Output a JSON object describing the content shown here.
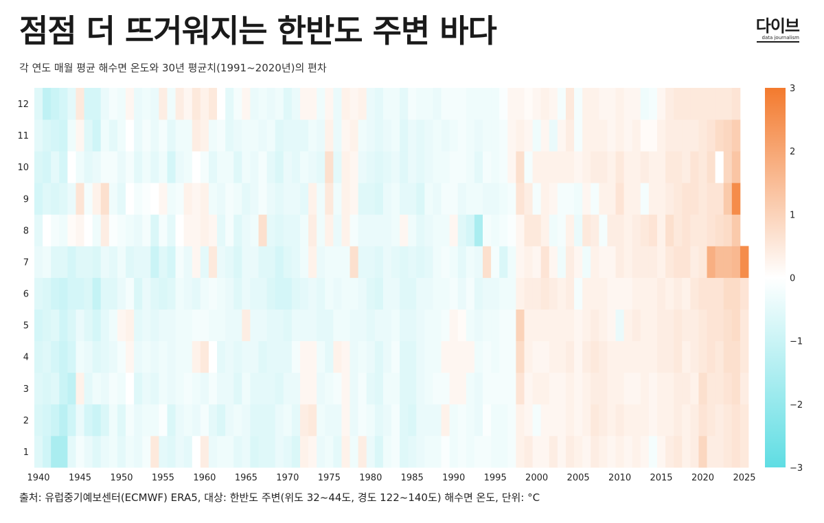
{
  "header": {
    "title": "점점 더 뜨거워지는 한반도 주변 바다",
    "subtitle": "각 연도 매월 평균 해수면 온도와 30년 평균치(1991~2020년)의 편차"
  },
  "logo": {
    "main": "다이브",
    "sub": "data journalism"
  },
  "footer": {
    "source": "출처: 유럽중기예보센터(ECMWF) ERA5, 대상: 한반도 주변(위도 32~44도, 경도 122~140도) 해수면 온도, 단위: °C"
  },
  "colors": {
    "cold": "#5fdde3",
    "neutral": "#ffffff",
    "warm": "#f37a2e"
  },
  "chart_data": {
    "type": "heatmap",
    "x_start": 1940,
    "x_end": 2025,
    "y_values": [
      1,
      2,
      3,
      4,
      5,
      6,
      7,
      8,
      9,
      10,
      11,
      12
    ],
    "x_ticks": [
      "1940",
      "1945",
      "1950",
      "1955",
      "1960",
      "1965",
      "1970",
      "1975",
      "1980",
      "1985",
      "1990",
      "1995",
      "2000",
      "2005",
      "2010",
      "2015",
      "2020",
      "2025"
    ],
    "y_ticks": [
      "1",
      "2",
      "3",
      "4",
      "5",
      "6",
      "7",
      "8",
      "9",
      "10",
      "11",
      "12"
    ],
    "colorbar": {
      "min": -3,
      "max": 3,
      "ticks": [
        "3",
        "2",
        "1",
        "0",
        "−1",
        "−2",
        "−3"
      ]
    },
    "unit": "°C",
    "values": {
      "1940": [
        -0.6,
        -0.7,
        -0.6,
        -0.7,
        -0.8,
        -0.6,
        -0.4,
        -0.5,
        -0.8,
        -0.7,
        -0.5,
        -0.6
      ],
      "1941": [
        -0.9,
        -0.8,
        -0.7,
        -0.6,
        -0.7,
        -0.7,
        -0.3,
        0.0,
        -0.6,
        -0.8,
        -0.7,
        -1.2
      ],
      "1942": [
        -1.6,
        -1.0,
        -0.6,
        -0.8,
        -0.6,
        -0.9,
        -0.6,
        -0.2,
        -0.7,
        -0.5,
        -0.8,
        -1.0
      ],
      "1943": [
        -1.6,
        -1.3,
        -1.0,
        -1.0,
        -0.9,
        -1.0,
        -0.6,
        -0.3,
        -0.6,
        -0.8,
        -0.9,
        -0.8
      ],
      "1944": [
        -0.5,
        -0.9,
        -1.2,
        -0.8,
        -0.7,
        -0.8,
        -0.8,
        0.1,
        -0.4,
        0.0,
        -0.3,
        -0.5
      ],
      "1945": [
        -0.2,
        -0.4,
        0.3,
        -0.3,
        -0.4,
        -0.8,
        -0.6,
        0.2,
        0.6,
        -0.3,
        0.2,
        0.5
      ],
      "1946": [
        -0.4,
        -0.8,
        -0.5,
        -0.4,
        -0.6,
        -0.7,
        -0.6,
        0.0,
        -0.2,
        -0.5,
        -0.6,
        -0.8
      ],
      "1947": [
        -0.6,
        -1.0,
        -0.3,
        -0.6,
        -0.8,
        -1.1,
        -0.7,
        -0.3,
        0.3,
        -0.4,
        -0.9,
        -0.8
      ],
      "1948": [
        -0.4,
        -0.7,
        -0.4,
        -0.5,
        -0.5,
        -0.6,
        -0.4,
        0.4,
        0.7,
        -0.2,
        -0.3,
        -0.4
      ],
      "1949": [
        -0.3,
        -0.3,
        -0.2,
        -0.4,
        -0.3,
        -0.6,
        -0.5,
        -0.1,
        -0.3,
        -0.2,
        -0.5,
        -0.2
      ],
      "1950": [
        -0.5,
        -0.6,
        -0.3,
        -0.2,
        0.2,
        -0.4,
        -0.3,
        -0.2,
        -0.5,
        -0.4,
        -0.3,
        -0.3
      ],
      "1951": [
        -0.3,
        -0.2,
        0.0,
        0.2,
        0.3,
        -0.2,
        -0.6,
        -0.3,
        0.0,
        -0.2,
        0.0,
        0.2
      ],
      "1952": [
        -0.4,
        -0.4,
        -0.6,
        -0.4,
        -0.5,
        -0.7,
        -0.5,
        -0.4,
        -0.2,
        -0.5,
        -0.4,
        -0.4
      ],
      "1953": [
        -0.2,
        -0.3,
        -0.4,
        -0.3,
        -0.4,
        -0.4,
        -0.5,
        -0.2,
        -0.1,
        -0.3,
        -0.2,
        -0.3
      ],
      "1954": [
        0.5,
        -0.3,
        -0.5,
        -0.4,
        -0.5,
        -0.6,
        -1.0,
        -0.7,
        0.0,
        -0.5,
        -0.4,
        -0.4
      ],
      "1955": [
        -0.5,
        -0.1,
        -0.3,
        -0.3,
        -0.4,
        -0.7,
        -0.6,
        -0.2,
        0.2,
        -0.3,
        -0.2,
        0.4
      ],
      "1956": [
        -0.6,
        -0.7,
        -0.4,
        -0.4,
        -0.4,
        -0.6,
        -0.8,
        -0.5,
        -0.3,
        -0.8,
        -0.5,
        -0.3
      ],
      "1957": [
        -0.4,
        -0.4,
        -0.3,
        -0.3,
        -0.3,
        -0.3,
        -0.2,
        0.0,
        -0.2,
        -0.4,
        -0.3,
        0.4
      ],
      "1958": [
        -0.5,
        -0.3,
        -0.2,
        -0.3,
        -0.3,
        -0.4,
        -0.4,
        0.2,
        0.3,
        -0.3,
        -0.3,
        0.2
      ],
      "1959": [
        0.0,
        -0.4,
        -0.3,
        0.3,
        -0.2,
        -0.5,
        0.2,
        0.2,
        0.2,
        0.0,
        0.4,
        0.5
      ],
      "1960": [
        0.4,
        -0.2,
        -0.4,
        0.5,
        -0.2,
        -0.3,
        -0.5,
        0.3,
        0.3,
        -0.2,
        0.3,
        0.3
      ],
      "1961": [
        -0.4,
        -0.5,
        -0.2,
        0.0,
        -0.3,
        -0.2,
        0.5,
        0.2,
        -0.3,
        -0.5,
        -0.3,
        0.5
      ],
      "1962": [
        -0.3,
        -0.7,
        -0.4,
        -0.5,
        -0.3,
        -0.3,
        -0.4,
        -0.5,
        -0.4,
        -0.3,
        -0.2,
        0.0
      ],
      "1963": [
        -0.3,
        -0.4,
        -0.4,
        -0.4,
        -0.4,
        -0.4,
        -0.5,
        -0.2,
        -0.2,
        -0.3,
        -0.5,
        -0.5
      ],
      "1964": [
        -0.5,
        -0.3,
        -0.6,
        -0.5,
        -0.4,
        -0.6,
        -0.7,
        -0.6,
        -0.3,
        -0.6,
        -0.4,
        -0.2
      ],
      "1965": [
        -0.4,
        -0.4,
        -0.3,
        -0.4,
        0.4,
        -0.4,
        -0.4,
        -0.4,
        -0.5,
        -0.3,
        -0.3,
        0.2
      ],
      "1966": [
        -0.7,
        -0.6,
        -0.5,
        -0.4,
        -0.4,
        -0.5,
        -0.4,
        -0.3,
        -0.4,
        -0.4,
        -0.3,
        -0.4
      ],
      "1967": [
        -0.6,
        -0.6,
        -0.5,
        -0.6,
        -0.4,
        -0.5,
        -0.6,
        0.7,
        -0.2,
        -0.2,
        -0.4,
        -0.3
      ],
      "1968": [
        -0.6,
        -0.6,
        -0.5,
        -0.5,
        -0.5,
        -0.7,
        -0.6,
        -0.5,
        -0.4,
        -0.5,
        -0.3,
        -0.4
      ],
      "1969": [
        -0.4,
        -0.4,
        -0.6,
        -0.5,
        -0.5,
        -0.8,
        -0.8,
        -0.6,
        -0.5,
        -0.7,
        -0.6,
        -0.3
      ],
      "1970": [
        -0.5,
        -0.3,
        -0.4,
        -0.5,
        -0.6,
        -0.8,
        -0.6,
        -0.5,
        -0.4,
        -0.4,
        -0.5,
        -0.6
      ],
      "1971": [
        -0.7,
        -0.5,
        -0.4,
        -0.2,
        -0.4,
        -0.6,
        -0.5,
        -0.5,
        -0.4,
        -0.5,
        -0.5,
        -0.4
      ],
      "1972": [
        0.3,
        0.4,
        0.2,
        0.2,
        -0.4,
        -0.5,
        -0.3,
        -0.3,
        -0.5,
        -0.3,
        -0.5,
        0.2
      ],
      "1973": [
        0.2,
        0.5,
        0.2,
        0.2,
        -0.4,
        -0.4,
        0.3,
        0.4,
        0.3,
        -0.4,
        -0.3,
        0.2
      ],
      "1974": [
        -0.4,
        -0.3,
        -0.4,
        -0.3,
        -0.5,
        -0.5,
        -0.4,
        -0.3,
        -0.3,
        -0.5,
        -0.4,
        -0.3
      ],
      "1975": [
        -0.3,
        -0.4,
        -0.3,
        -0.5,
        -0.5,
        -0.3,
        -0.3,
        0.3,
        0.5,
        0.7,
        0.3,
        0.2
      ],
      "1976": [
        -0.5,
        -0.4,
        -0.2,
        0.3,
        -0.3,
        -0.4,
        -0.3,
        -0.4,
        -0.3,
        -0.5,
        -0.4,
        -0.4
      ],
      "1977": [
        0.3,
        0.2,
        0.2,
        0.2,
        -0.3,
        -0.3,
        -0.3,
        0.3,
        0.3,
        0.3,
        0.2,
        0.3
      ],
      "1978": [
        -0.3,
        -0.4,
        -0.4,
        -0.4,
        -0.4,
        -0.3,
        0.7,
        -0.2,
        0.2,
        0.2,
        0.3,
        0.2
      ],
      "1979": [
        0.4,
        -0.2,
        -0.2,
        -0.3,
        -0.4,
        -0.4,
        -0.5,
        -0.4,
        -0.6,
        -0.4,
        -0.3,
        0.3
      ],
      "1980": [
        -0.4,
        -0.3,
        -0.5,
        -0.4,
        -0.5,
        -0.6,
        -0.5,
        -0.4,
        -0.6,
        -0.5,
        -0.4,
        -0.4
      ],
      "1981": [
        -0.7,
        -0.5,
        -0.6,
        -0.6,
        -0.4,
        -0.7,
        -0.6,
        -0.4,
        -0.7,
        -0.6,
        -0.5,
        -0.5
      ],
      "1982": [
        -0.3,
        -0.4,
        -0.3,
        -0.4,
        -0.4,
        -0.4,
        -0.4,
        -0.4,
        -0.4,
        -0.5,
        -0.4,
        -0.3
      ],
      "1983": [
        -0.2,
        -0.2,
        -0.3,
        -0.2,
        -0.3,
        -0.4,
        -0.5,
        -0.3,
        -0.3,
        -0.4,
        -0.3,
        -0.3
      ],
      "1984": [
        -0.6,
        -0.6,
        -0.6,
        -0.6,
        -0.5,
        -0.6,
        -0.6,
        0.2,
        -0.5,
        -0.6,
        -0.6,
        -0.5
      ],
      "1985": [
        -0.5,
        -0.7,
        -0.6,
        -0.6,
        -0.5,
        -0.6,
        -0.5,
        -0.3,
        -0.5,
        -0.4,
        -0.4,
        -0.2
      ],
      "1986": [
        -0.4,
        -0.4,
        -0.4,
        -0.4,
        -0.4,
        -0.4,
        -0.6,
        -0.5,
        -0.7,
        -0.5,
        -0.5,
        -0.3
      ],
      "1987": [
        -0.3,
        -0.4,
        -0.3,
        -0.3,
        -0.3,
        -0.4,
        -0.5,
        -0.4,
        -0.3,
        -0.4,
        -0.4,
        -0.3
      ],
      "1988": [
        -0.3,
        -0.4,
        -0.2,
        -0.3,
        -0.3,
        -0.3,
        -0.3,
        -0.3,
        -0.4,
        -0.3,
        -0.3,
        -0.4
      ],
      "1989": [
        -0.1,
        0.3,
        -0.2,
        0.2,
        -0.2,
        -0.3,
        -0.2,
        -0.3,
        -0.2,
        -0.3,
        -0.4,
        -0.2
      ],
      "1990": [
        -0.3,
        -0.3,
        0.2,
        0.2,
        0.2,
        -0.2,
        -0.3,
        0.2,
        -0.2,
        -0.2,
        -0.3,
        -0.2
      ],
      "1991": [
        -0.2,
        -0.2,
        0.2,
        0.2,
        0.1,
        -0.4,
        -0.5,
        -0.6,
        -0.4,
        -0.2,
        -0.2,
        -0.2
      ],
      "1992": [
        -0.3,
        -0.3,
        -0.3,
        0.2,
        -0.3,
        -0.2,
        -0.3,
        -0.8,
        -0.3,
        -0.3,
        -0.3,
        -0.3
      ],
      "1993": [
        -0.2,
        -0.4,
        -0.4,
        -0.3,
        -0.4,
        -0.5,
        -0.4,
        -1.6,
        -0.3,
        -0.5,
        -0.4,
        -0.3
      ],
      "1994": [
        -0.2,
        -0.1,
        -0.2,
        -0.2,
        -0.3,
        -0.4,
        0.7,
        -0.2,
        -0.4,
        -0.2,
        -0.3,
        -0.3
      ],
      "1995": [
        -0.3,
        -0.3,
        -0.2,
        -0.3,
        -0.3,
        -0.4,
        -0.2,
        -0.3,
        -0.4,
        -0.3,
        -0.3,
        -0.3
      ],
      "1996": [
        -0.3,
        -0.3,
        -0.2,
        -0.2,
        -0.2,
        -0.3,
        -0.7,
        -0.2,
        -0.3,
        -0.2,
        -0.2,
        -0.1
      ],
      "1997": [
        -0.2,
        -0.2,
        -0.2,
        -0.2,
        -0.2,
        -0.3,
        -0.3,
        -0.1,
        -0.2,
        0.2,
        0.2,
        0.2
      ],
      "1998": [
        0.3,
        0.3,
        0.6,
        0.8,
        1.0,
        0.3,
        0.2,
        0.2,
        0.6,
        0.7,
        0.3,
        0.2
      ],
      "1999": [
        0.4,
        0.2,
        0.2,
        0.3,
        0.3,
        0.4,
        0.3,
        0.5,
        0.4,
        -0.2,
        0.2,
        0.1
      ],
      "2000": [
        0.2,
        -0.2,
        0.3,
        0.2,
        0.3,
        0.4,
        0.2,
        0.5,
        -0.2,
        0.3,
        -0.3,
        0.2
      ],
      "2001": [
        0.2,
        0.2,
        0.3,
        0.2,
        0.3,
        0.5,
        0.6,
        0.3,
        0.3,
        0.3,
        0.2,
        0.3
      ],
      "2002": [
        0.4,
        0.2,
        0.2,
        0.3,
        0.3,
        0.4,
        0.2,
        -0.3,
        0.2,
        0.3,
        -0.4,
        0.2
      ],
      "2003": [
        0.2,
        0.2,
        0.2,
        0.3,
        0.3,
        0.3,
        -0.3,
        -0.2,
        -0.2,
        0.3,
        0.2,
        -0.2
      ],
      "2004": [
        0.4,
        0.3,
        0.3,
        0.4,
        0.3,
        0.4,
        0.4,
        0.3,
        -0.2,
        0.3,
        0.4,
        0.5
      ],
      "2005": [
        0.3,
        0.2,
        0.2,
        0.2,
        0.2,
        -0.2,
        0.2,
        -0.4,
        -0.3,
        0.2,
        -0.2,
        -0.2
      ],
      "2006": [
        0.2,
        0.3,
        0.3,
        0.4,
        0.3,
        0.3,
        -0.3,
        0.5,
        0.2,
        0.3,
        0.3,
        0.3
      ],
      "2007": [
        0.4,
        0.5,
        0.4,
        0.5,
        0.4,
        0.3,
        0.3,
        0.4,
        -0.2,
        0.4,
        0.3,
        0.3
      ],
      "2008": [
        0.3,
        0.4,
        0.4,
        0.4,
        0.3,
        0.3,
        0.2,
        -0.2,
        0.3,
        0.4,
        0.3,
        0.2
      ],
      "2009": [
        0.2,
        0.3,
        0.3,
        0.3,
        0.2,
        0.2,
        0.2,
        0.4,
        0.3,
        0.3,
        0.2,
        0.2
      ],
      "2010": [
        0.3,
        0.4,
        0.3,
        0.3,
        -0.4,
        0.2,
        0.4,
        0.4,
        0.6,
        0.5,
        0.3,
        0.3
      ],
      "2011": [
        0.2,
        0.3,
        0.2,
        0.3,
        0.3,
        0.2,
        0.3,
        0.3,
        0.3,
        0.3,
        0.2,
        0.2
      ],
      "2012": [
        0.3,
        0.3,
        0.2,
        0.3,
        0.4,
        0.3,
        0.4,
        0.4,
        0.3,
        0.3,
        0.3,
        0.2
      ],
      "2013": [
        0.2,
        0.3,
        0.3,
        0.3,
        0.3,
        0.3,
        0.4,
        0.5,
        -0.2,
        0.4,
        0.1,
        -0.3
      ],
      "2014": [
        -0.2,
        0.2,
        0.2,
        0.3,
        0.3,
        0.3,
        0.4,
        0.6,
        0.3,
        0.3,
        0.1,
        -0.2
      ],
      "2015": [
        0.2,
        0.3,
        0.3,
        0.4,
        0.4,
        0.4,
        0.3,
        0.3,
        0.3,
        0.3,
        0.3,
        0.2
      ],
      "2016": [
        0.4,
        0.3,
        0.3,
        0.4,
        0.4,
        0.3,
        0.5,
        0.7,
        0.4,
        0.5,
        0.4,
        0.4
      ],
      "2017": [
        0.5,
        0.4,
        0.4,
        0.5,
        0.5,
        0.4,
        0.6,
        0.5,
        0.5,
        0.5,
        0.4,
        0.5
      ],
      "2018": [
        0.3,
        0.3,
        0.4,
        0.3,
        0.4,
        0.3,
        0.6,
        0.6,
        0.6,
        0.4,
        0.4,
        0.5
      ],
      "2019": [
        0.4,
        0.4,
        0.3,
        0.4,
        0.4,
        0.5,
        0.4,
        0.5,
        0.6,
        0.6,
        0.4,
        0.5
      ],
      "2020": [
        0.9,
        0.6,
        0.7,
        0.5,
        0.5,
        0.6,
        0.5,
        0.5,
        0.5,
        0.5,
        0.5,
        0.5
      ],
      "2021": [
        0.4,
        0.5,
        0.5,
        0.6,
        0.6,
        0.6,
        1.8,
        0.6,
        0.6,
        0.7,
        0.6,
        0.5
      ],
      "2022": [
        0.4,
        0.4,
        0.5,
        0.5,
        0.6,
        0.6,
        1.5,
        0.7,
        0.6,
        0.0,
        0.8,
        0.5
      ],
      "2023": [
        0.5,
        0.5,
        0.6,
        0.7,
        0.7,
        0.8,
        1.5,
        0.8,
        1.2,
        0.9,
        0.9,
        0.5
      ],
      "2024": [
        0.6,
        0.6,
        0.7,
        0.7,
        0.8,
        0.8,
        1.6,
        1.2,
        2.6,
        1.3,
        1.1,
        0.6
      ],
      "2025": [
        0.5,
        0.5,
        0.4,
        0.5,
        0.5,
        0.6,
        2.6,
        null,
        null,
        null,
        null,
        null
      ]
    }
  }
}
